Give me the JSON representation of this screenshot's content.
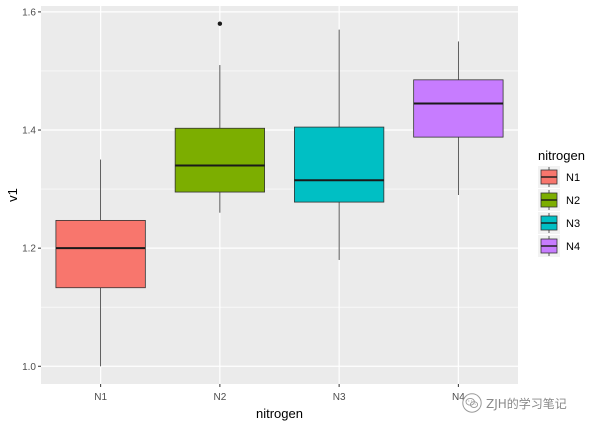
{
  "chart_data": {
    "type": "boxplot",
    "xlabel": "nitrogen",
    "ylabel": "v1",
    "ylim": [
      0.97,
      1.61
    ],
    "yticks": [
      1.0,
      1.2,
      1.4,
      1.6
    ],
    "ytick_labels": [
      "1.0",
      "1.2",
      "1.4",
      "1.6"
    ],
    "categories": [
      "N1",
      "N2",
      "N3",
      "N4"
    ],
    "boxes": [
      {
        "category": "N1",
        "whisker_low": 1.0,
        "q1": 1.133,
        "median": 1.2,
        "q3": 1.247,
        "whisker_high": 1.35,
        "outliers": []
      },
      {
        "category": "N2",
        "whisker_low": 1.26,
        "q1": 1.295,
        "median": 1.34,
        "q3": 1.403,
        "whisker_high": 1.51,
        "outliers": [
          1.58
        ]
      },
      {
        "category": "N3",
        "whisker_low": 1.18,
        "q1": 1.278,
        "median": 1.315,
        "q3": 1.405,
        "whisker_high": 1.57,
        "outliers": []
      },
      {
        "category": "N4",
        "whisker_low": 1.29,
        "q1": 1.388,
        "median": 1.445,
        "q3": 1.485,
        "whisker_high": 1.55,
        "outliers": []
      }
    ],
    "fill_colors": [
      "#F8766D",
      "#7CAE00",
      "#00BFC4",
      "#C77CFF"
    ],
    "panel_background": "#EBEBEB",
    "grid": true,
    "legend": {
      "title": "nitrogen",
      "placement": "right",
      "entries": [
        "N1",
        "N2",
        "N3",
        "N4"
      ]
    }
  },
  "watermark": {
    "text": "ZJH的学习笔记",
    "icon": "wechat-icon"
  }
}
